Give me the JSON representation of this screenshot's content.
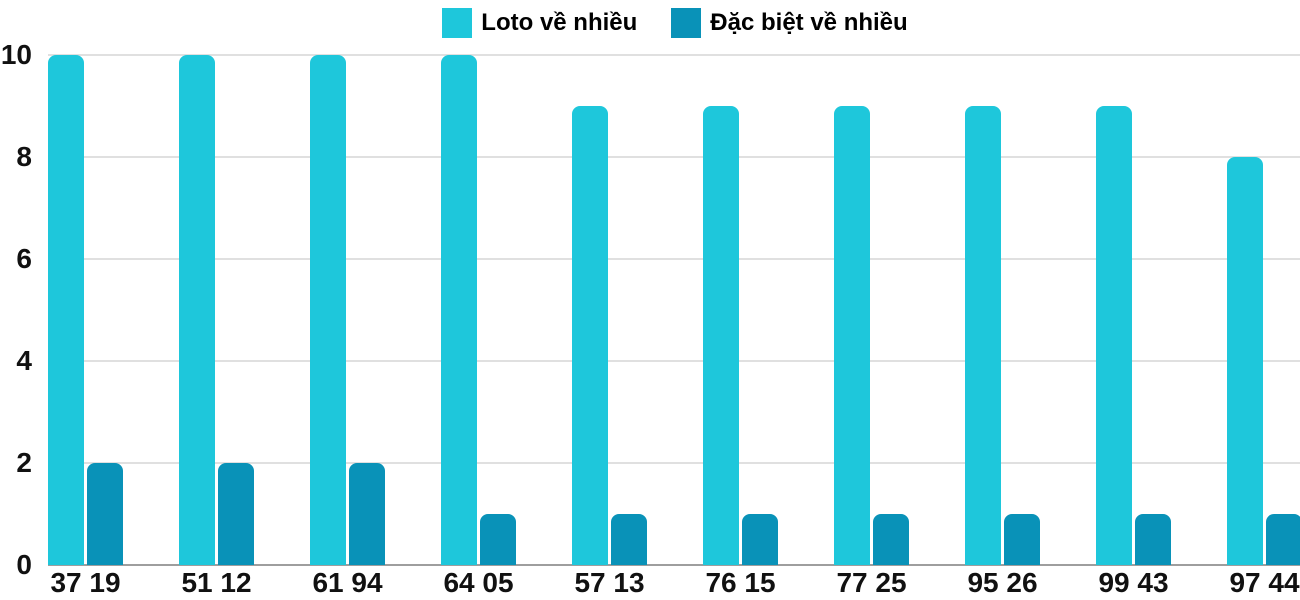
{
  "chart_data": {
    "type": "bar",
    "title": "",
    "xlabel": "",
    "ylabel": "",
    "categories": [
      "37 19",
      "51 12",
      "61 94",
      "64 05",
      "57 13",
      "76 15",
      "77 25",
      "95 26",
      "99 43",
      "97 44"
    ],
    "series": [
      {
        "name": "Loto về nhiều",
        "color": "#1EC7DB",
        "values": [
          10,
          10,
          10,
          10,
          9,
          9,
          9,
          9,
          9,
          8
        ]
      },
      {
        "name": "Đặc biệt về nhiều",
        "color": "#0992B8",
        "values": [
          2,
          2,
          2,
          1,
          1,
          1,
          1,
          1,
          1,
          1
        ]
      }
    ],
    "ylim": [
      0,
      10
    ],
    "yticks": [
      0,
      2,
      4,
      6,
      8,
      10
    ],
    "grid": true,
    "legend_position": "top-center",
    "colors": {
      "background": "#ffffff",
      "gridline": "#e0e0e0",
      "baseline": "#9e9e9e",
      "tick_label": "#111111",
      "legend_text": "#000000"
    }
  }
}
